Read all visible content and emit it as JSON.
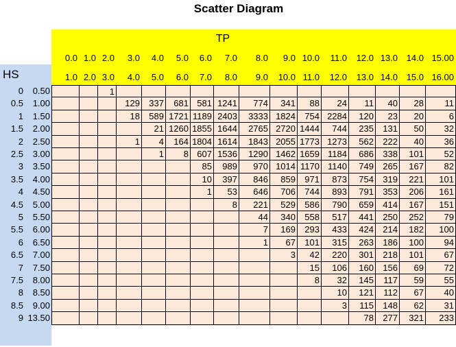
{
  "title": "Scatter Diagram",
  "tp_label": "TP",
  "hs_label": "HS",
  "tp_from": [
    "0.0",
    "1.0",
    "2.0",
    "3.0",
    "4.0",
    "5.0",
    "6.0",
    "7.0",
    "8.0",
    "9.0",
    "10.0",
    "11.0",
    "12.0",
    "13.0",
    "14.0",
    "15.00"
  ],
  "tp_to": [
    "1.0",
    "2.0",
    "3.0",
    "4.0",
    "5.0",
    "6.0",
    "7.0",
    "8.0",
    "9.0",
    "10.0",
    "11.0",
    "12.0",
    "13.0",
    "14.0",
    "15.0",
    "16.00"
  ],
  "hs_from": [
    "0",
    "0.5",
    "1",
    "1.5",
    "2",
    "2.5",
    "3",
    "3.5",
    "4",
    "4.5",
    "5",
    "5.5",
    "6",
    "6.5",
    "7",
    "7.5",
    "8",
    "8.5",
    "9"
  ],
  "hs_to": [
    "0.50",
    "1.00",
    "1.50",
    "2.00",
    "2.50",
    "3.00",
    "3.50",
    "4.00",
    "4.50",
    "5.00",
    "5.50",
    "6.00",
    "6.50",
    "7.00",
    "7.50",
    "8.00",
    "8.50",
    "9.00",
    "13.50"
  ],
  "rows": [
    [
      "",
      "",
      "1",
      "",
      "",
      "",
      "",
      "",
      "",
      "",
      "",
      "",
      "",
      "",
      "",
      ""
    ],
    [
      "",
      "",
      "",
      "129",
      "337",
      "681",
      "581",
      "1241",
      "774",
      "341",
      "88",
      "24",
      "11",
      "40",
      "28",
      "11"
    ],
    [
      "",
      "",
      "",
      "18",
      "589",
      "1721",
      "1189",
      "2403",
      "3333",
      "1824",
      "754",
      "2284",
      "120",
      "23",
      "20",
      "6"
    ],
    [
      "",
      "",
      "",
      "",
      "21",
      "1260",
      "1855",
      "1644",
      "2765",
      "2720",
      "1444",
      "744",
      "235",
      "131",
      "50",
      "32"
    ],
    [
      "",
      "",
      "",
      "1",
      "4",
      "164",
      "1804",
      "1614",
      "1843",
      "2055",
      "1773",
      "1273",
      "562",
      "222",
      "40",
      "36"
    ],
    [
      "",
      "",
      "",
      "",
      "1",
      "8",
      "607",
      "1536",
      "1290",
      "1462",
      "1659",
      "1184",
      "686",
      "338",
      "101",
      "52"
    ],
    [
      "",
      "",
      "",
      "",
      "",
      "",
      "85",
      "989",
      "970",
      "1014",
      "1170",
      "1140",
      "749",
      "265",
      "167",
      "82"
    ],
    [
      "",
      "",
      "",
      "",
      "",
      "",
      "10",
      "397",
      "846",
      "859",
      "971",
      "873",
      "754",
      "319",
      "221",
      "101"
    ],
    [
      "",
      "",
      "",
      "",
      "",
      "",
      "1",
      "53",
      "646",
      "706",
      "744",
      "893",
      "791",
      "353",
      "206",
      "161"
    ],
    [
      "",
      "",
      "",
      "",
      "",
      "",
      "",
      "8",
      "221",
      "529",
      "586",
      "790",
      "659",
      "414",
      "167",
      "151"
    ],
    [
      "",
      "",
      "",
      "",
      "",
      "",
      "",
      "",
      "44",
      "340",
      "558",
      "517",
      "441",
      "250",
      "252",
      "79"
    ],
    [
      "",
      "",
      "",
      "",
      "",
      "",
      "",
      "",
      "7",
      "169",
      "293",
      "433",
      "424",
      "214",
      "182",
      "100"
    ],
    [
      "",
      "",
      "",
      "",
      "",
      "",
      "",
      "",
      "1",
      "67",
      "101",
      "315",
      "263",
      "186",
      "100",
      "94"
    ],
    [
      "",
      "",
      "",
      "",
      "",
      "",
      "",
      "",
      "",
      "3",
      "42",
      "220",
      "301",
      "218",
      "101",
      "67"
    ],
    [
      "",
      "",
      "",
      "",
      "",
      "",
      "",
      "",
      "",
      "",
      "15",
      "106",
      "160",
      "156",
      "69",
      "72"
    ],
    [
      "",
      "",
      "",
      "",
      "",
      "",
      "",
      "",
      "",
      "",
      "8",
      "32",
      "145",
      "117",
      "59",
      "55"
    ],
    [
      "",
      "",
      "",
      "",
      "",
      "",
      "",
      "",
      "",
      "",
      "",
      "10",
      "121",
      "112",
      "67",
      "40"
    ],
    [
      "",
      "",
      "",
      "",
      "",
      "",
      "",
      "",
      "",
      "",
      "",
      "3",
      "115",
      "148",
      "62",
      "31"
    ],
    [
      "",
      "",
      "",
      "",
      "",
      "",
      "",
      "",
      "",
      "",
      "",
      "",
      "78",
      "277",
      "321",
      "233"
    ]
  ]
}
